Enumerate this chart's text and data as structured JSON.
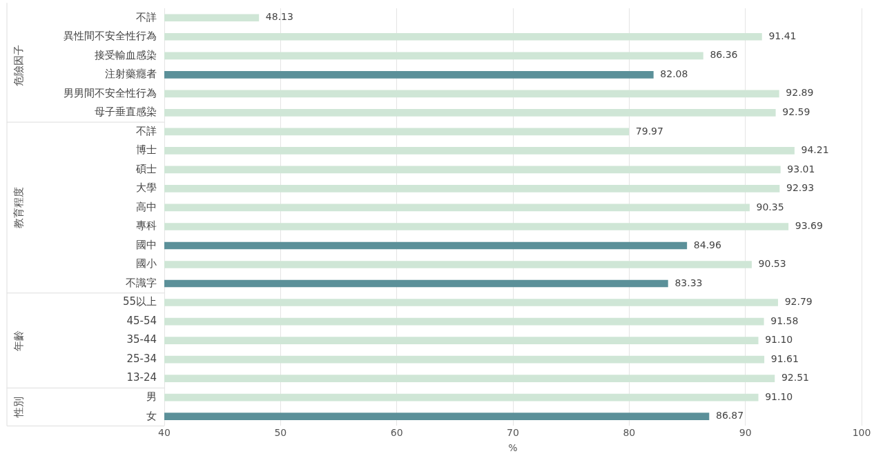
{
  "chart_data": {
    "type": "bar",
    "orientation": "horizontal",
    "xlabel": "%",
    "categories": [
      "不詳",
      "異性間不安全性行為",
      "接受輸血感染",
      "注射藥癮者",
      "男男間不安全性行為",
      "母子垂直感染",
      "不詳",
      "博士",
      "碩士",
      "大學",
      "高中",
      "專科",
      "國中",
      "國小",
      "不識字",
      "55以上",
      "45-54",
      "35-44",
      "25-34",
      "13-24",
      "男",
      "女"
    ],
    "values": [
      48.13,
      91.41,
      86.36,
      82.08,
      92.89,
      92.59,
      79.97,
      94.21,
      93.01,
      92.93,
      90.35,
      93.69,
      84.96,
      90.53,
      83.33,
      92.79,
      91.58,
      91.1,
      91.61,
      92.51,
      91.1,
      86.87
    ],
    "value_labels": [
      "48.13",
      "91.41",
      "86.36",
      "82.08",
      "92.89",
      "92.59",
      "79.97",
      "94.21",
      "93.01",
      "92.93",
      "90.35",
      "93.69",
      "84.96",
      "90.53",
      "83.33",
      "92.79",
      "91.58",
      "91.10",
      "91.61",
      "92.51",
      "91.10",
      "86.87"
    ],
    "colors": [
      "#cfe6d6",
      "#cfe6d6",
      "#cfe6d6",
      "#5b9099",
      "#cfe6d6",
      "#cfe6d6",
      "#cfe6d6",
      "#cfe6d6",
      "#cfe6d6",
      "#cfe6d6",
      "#cfe6d6",
      "#cfe6d6",
      "#5b9099",
      "#cfe6d6",
      "#5b9099",
      "#cfe6d6",
      "#cfe6d6",
      "#cfe6d6",
      "#cfe6d6",
      "#cfe6d6",
      "#cfe6d6",
      "#5b9099"
    ],
    "xlim": [
      40,
      100
    ],
    "xticks": [
      40,
      50,
      60,
      70,
      80,
      90,
      100
    ],
    "grid": "x",
    "legend": false,
    "annotations": [
      "危險因子",
      "教育程度",
      "年齡",
      "性別"
    ]
  }
}
